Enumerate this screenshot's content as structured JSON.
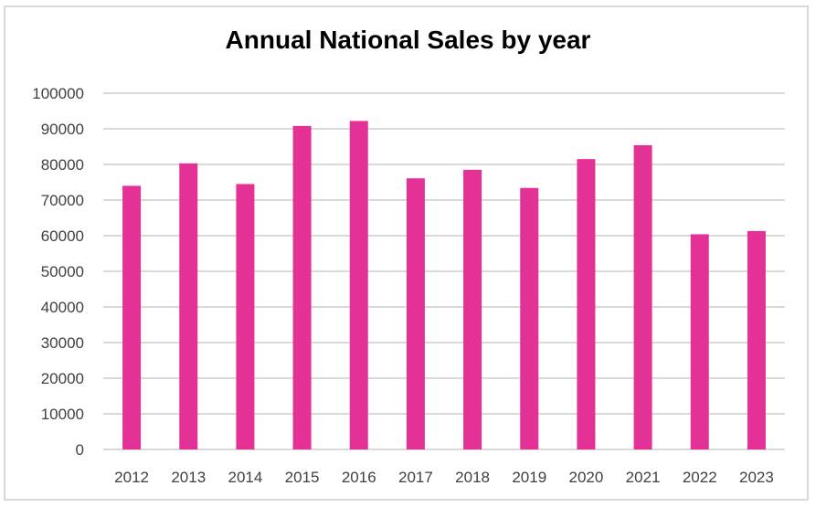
{
  "chart_data": {
    "type": "bar",
    "title": "Annual National Sales by year",
    "xlabel": "",
    "ylabel": "",
    "categories": [
      "2012",
      "2013",
      "2014",
      "2015",
      "2016",
      "2017",
      "2018",
      "2019",
      "2020",
      "2021",
      "2022",
      "2023"
    ],
    "values": [
      74000,
      80300,
      74500,
      90800,
      92200,
      76100,
      78500,
      73400,
      81500,
      85400,
      60400,
      61300
    ],
    "ylim": [
      0,
      100000
    ],
    "yticks": [
      "0",
      "10000",
      "20000",
      "30000",
      "40000",
      "50000",
      "60000",
      "70000",
      "80000",
      "90000",
      "100000"
    ],
    "grid": true,
    "legend": "none",
    "colors": {
      "bar": "#e33196",
      "grid": "#d9d9d9",
      "tick_text": "#404040"
    }
  }
}
